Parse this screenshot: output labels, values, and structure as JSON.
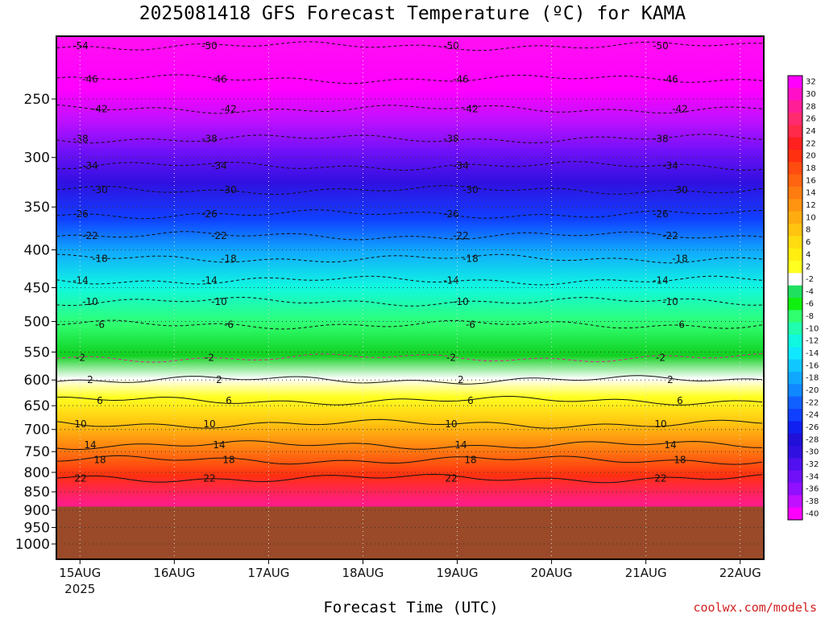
{
  "title": "2025081418 GFS Forecast Temperature (ºC) for KAMA",
  "xlabel": "Forecast Time (UTC)",
  "credit": "coolwx.com/models",
  "chart_data": {
    "type": "heatmap",
    "title": "2025081418 GFS Forecast Temperature (ºC) for KAMA",
    "xlabel": "Forecast Time (UTC)",
    "ylabel": "",
    "y_ticks": [
      250,
      300,
      350,
      400,
      450,
      500,
      550,
      600,
      650,
      700,
      750,
      800,
      850,
      900,
      950,
      1000
    ],
    "y_scale": "log-pressure, inverted",
    "ylim": [
      1050,
      200
    ],
    "x_ticks": [
      {
        "label": "15AUG",
        "sub": "2025",
        "hour": 6
      },
      {
        "label": "16AUG",
        "sub": "",
        "hour": 30
      },
      {
        "label": "17AUG",
        "sub": "",
        "hour": 54
      },
      {
        "label": "18AUG",
        "sub": "",
        "hour": 78
      },
      {
        "label": "19AUG",
        "sub": "",
        "hour": 102
      },
      {
        "label": "20AUG",
        "sub": "",
        "hour": 126
      },
      {
        "label": "21AUG",
        "sub": "",
        "hour": 150
      },
      {
        "label": "22AUG",
        "sub": "",
        "hour": 174
      }
    ],
    "xlim": [
      0,
      180
    ],
    "surface_pressure": 890,
    "grid": true,
    "contour_labels": [
      {
        "p": 212,
        "t": [
          -54,
          -50,
          -50,
          -50
        ]
      },
      {
        "p": 235,
        "t": [
          -46,
          -46,
          -46,
          -46
        ]
      },
      {
        "p": 258,
        "t": [
          -42,
          -42,
          -42,
          -42
        ]
      },
      {
        "p": 283,
        "t": [
          -38,
          -38,
          -38,
          -38
        ]
      },
      {
        "p": 308,
        "t": [
          -34,
          -34,
          -34,
          -34
        ]
      },
      {
        "p": 332,
        "t": [
          -30,
          -30,
          -30,
          -30
        ]
      },
      {
        "p": 358,
        "t": [
          -26,
          -26,
          -26,
          -26
        ]
      },
      {
        "p": 383,
        "t": [
          -22,
          -22,
          -22,
          -22
        ]
      },
      {
        "p": 411,
        "t": [
          -18,
          -18,
          -18,
          -18
        ]
      },
      {
        "p": 440,
        "t": [
          -14,
          -14,
          -14,
          -14
        ]
      },
      {
        "p": 470,
        "t": [
          -10,
          -10,
          -10,
          -10
        ]
      },
      {
        "p": 505,
        "t": [
          -6,
          -6,
          -6,
          -6
        ]
      },
      {
        "p": 560,
        "t": [
          -2,
          -2,
          -2,
          -2
        ]
      },
      {
        "p": 600,
        "t": [
          2,
          2,
          2,
          2
        ]
      },
      {
        "p": 640,
        "t": [
          6,
          6,
          6,
          6
        ]
      },
      {
        "p": 688,
        "t": [
          10,
          10,
          10,
          10
        ]
      },
      {
        "p": 735,
        "t": [
          14,
          14,
          14,
          14
        ]
      },
      {
        "p": 770,
        "t": [
          18,
          18,
          18,
          18
        ]
      },
      {
        "p": 815,
        "t": [
          22,
          22,
          22,
          22
        ]
      }
    ],
    "colorbar": {
      "labels": [
        32,
        30,
        28,
        26,
        24,
        22,
        20,
        18,
        16,
        14,
        12,
        10,
        8,
        6,
        4,
        2,
        -2,
        -4,
        -6,
        -8,
        -10,
        -12,
        -14,
        -16,
        -18,
        -20,
        -22,
        -24,
        -26,
        -28,
        -30,
        -32,
        -34,
        -36,
        -38,
        -40
      ],
      "colors": [
        "#ff00ff",
        "#ff10c8",
        "#ff1e96",
        "#ff2b6e",
        "#ff2a4a",
        "#ff2020",
        "#ff3010",
        "#ff4c10",
        "#ff6410",
        "#ff7c10",
        "#ff9410",
        "#ffac10",
        "#ffc410",
        "#ffdc10",
        "#ffee10",
        "#ffff20",
        "#ffffff",
        "#20e060",
        "#10f010",
        "#30ff70",
        "#20ffb0",
        "#10f8e0",
        "#10e8ff",
        "#10c8ff",
        "#10a8ff",
        "#1088ff",
        "#1060ff",
        "#1040ff",
        "#1020f0",
        "#2010d8",
        "#3010e0",
        "#5010f0",
        "#7010f8",
        "#9010ff",
        "#c010ff",
        "#ff00ff"
      ]
    }
  }
}
